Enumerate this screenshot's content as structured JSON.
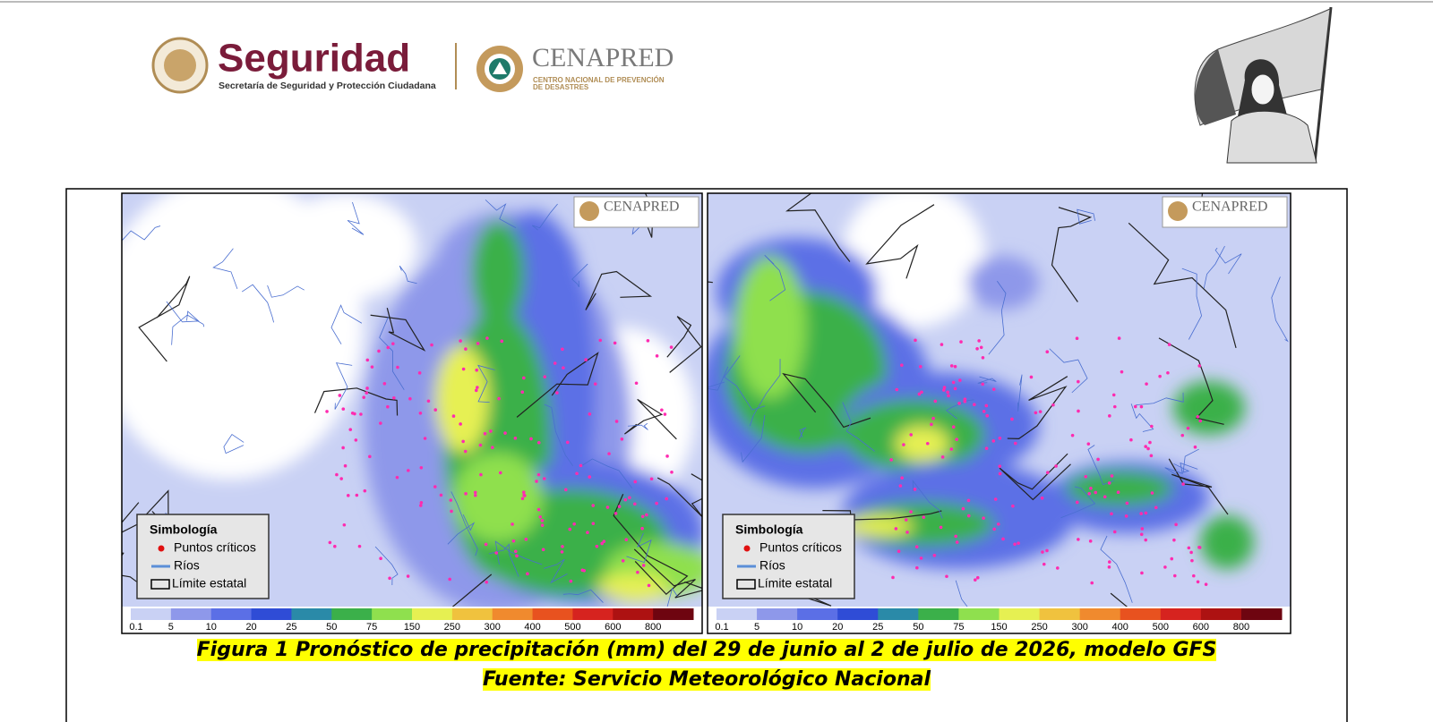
{
  "header": {
    "logo_title": "Seguridad",
    "logo_subtitle": "Secretaría de Seguridad y Protección Ciudadana",
    "agency": "CENAPRED",
    "agency_subtitle_1": "CENTRO NACIONAL DE PREVENCIÓN",
    "agency_subtitle_2": "DE DESASTRES"
  },
  "maps": [
    {
      "watermark": "CENAPRED",
      "legend": {
        "title": "Simbología",
        "items": [
          "Puntos críticos",
          "Ríos",
          "Límite estatal"
        ]
      },
      "scale_labels": [
        0.1,
        5,
        10,
        20,
        25,
        50,
        75,
        150,
        250,
        300,
        400,
        500,
        600,
        800
      ]
    },
    {
      "watermark": "CENAPRED",
      "legend": {
        "title": "Simbología",
        "items": [
          "Puntos críticos",
          "Ríos",
          "Límite estatal"
        ]
      },
      "scale_labels": [
        0.1,
        5,
        10,
        20,
        25,
        50,
        75,
        150,
        250,
        300,
        400,
        500,
        600,
        800
      ]
    }
  ],
  "scale_colors": [
    "#c9d1f4",
    "#8e98ea",
    "#5b6fe6",
    "#2f4cd6",
    "#2a8aa8",
    "#3bb04a",
    "#8fe04e",
    "#e6f052",
    "#f0c23e",
    "#f08a2e",
    "#e8521f",
    "#d6231f",
    "#ad1212",
    "#6e0510"
  ],
  "caption": {
    "line1": "Figura 1 Pronóstico de precipitación (mm) del 29 de junio al 2 de julio de 2026, modelo GFS",
    "line2": "Fuente: Servicio Meteorológico Nacional"
  }
}
